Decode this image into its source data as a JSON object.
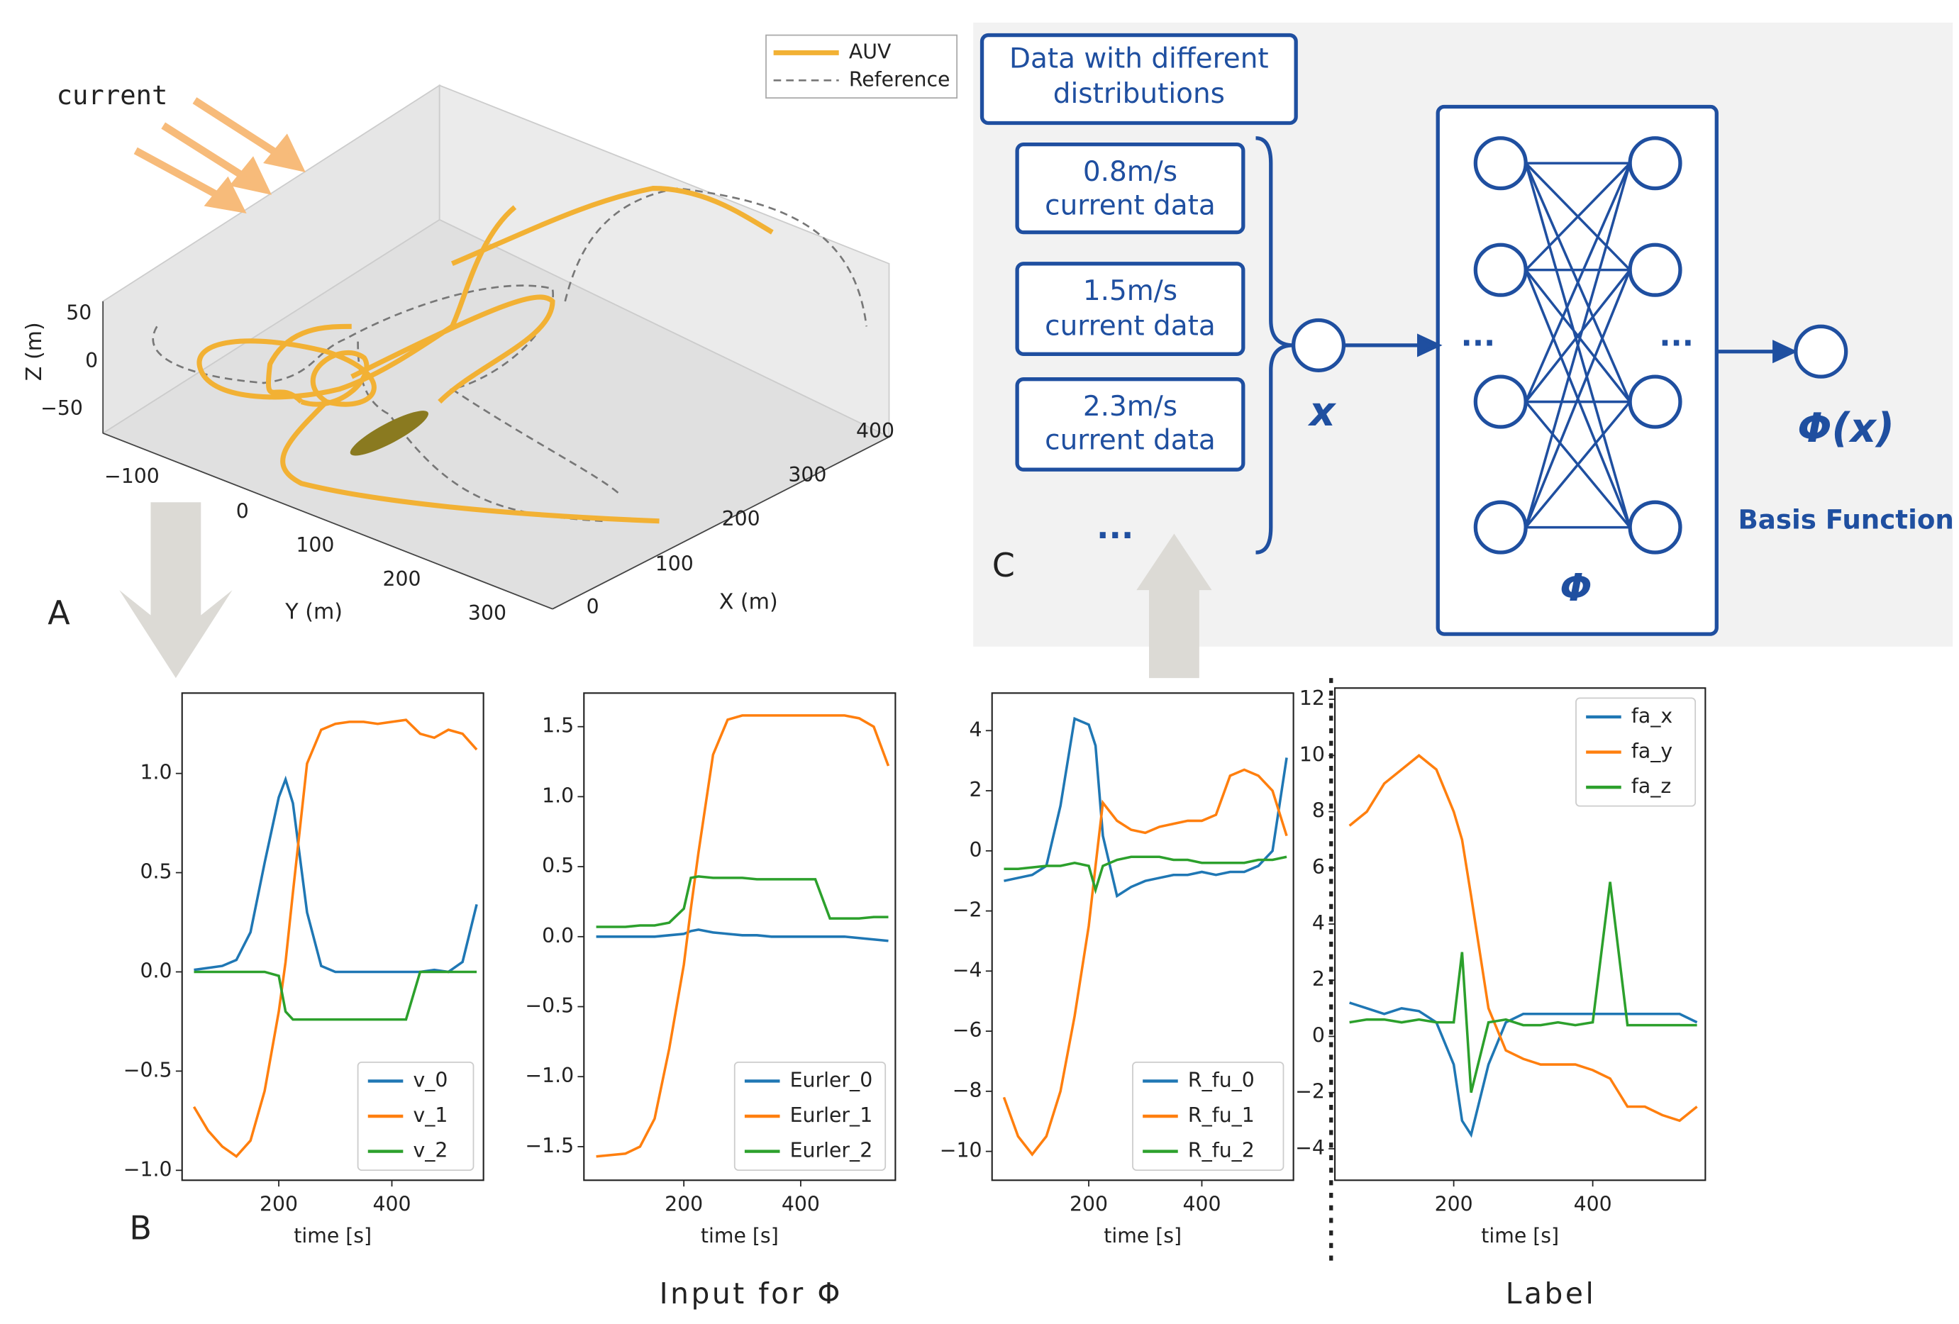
{
  "chart_data": [
    {
      "type": "line3d",
      "xlabel": "X (m)",
      "ylabel": "Y (m)",
      "zlabel": "Z (m)",
      "xticks": [
        0,
        100,
        200,
        300,
        400
      ],
      "yticks": [
        {
          "value": -100,
          "label": "−100"
        },
        0,
        100,
        200,
        300
      ],
      "zticks": [
        {
          "value": -50,
          "label": "−50"
        },
        0,
        50
      ],
      "series": [
        {
          "name": "AUV",
          "color": "#f2b134"
        },
        {
          "name": "Reference",
          "color": "#777777"
        }
      ],
      "legend": "upper right"
    },
    {
      "type": "line",
      "xlabel": "time [s]",
      "x": [
        50,
        75,
        100,
        125,
        150,
        175,
        200,
        212,
        225,
        250,
        275,
        300,
        325,
        350,
        375,
        400,
        425,
        450,
        475,
        500,
        525,
        550
      ],
      "series": [
        {
          "name": "v_0",
          "color": "#1f77b4",
          "values": [
            0.01,
            0.02,
            0.03,
            0.06,
            0.2,
            0.55,
            0.88,
            0.97,
            0.85,
            0.3,
            0.03,
            0.0,
            0.0,
            0.0,
            0.0,
            0.0,
            0.0,
            0.0,
            0.01,
            0.0,
            0.05,
            0.34
          ]
        },
        {
          "name": "v_1",
          "color": "#ff7f0e",
          "values": [
            -0.68,
            -0.8,
            -0.88,
            -0.93,
            -0.85,
            -0.6,
            -0.2,
            0.05,
            0.4,
            1.05,
            1.22,
            1.25,
            1.26,
            1.26,
            1.25,
            1.26,
            1.27,
            1.2,
            1.18,
            1.22,
            1.2,
            1.12
          ]
        },
        {
          "name": "v_2",
          "color": "#2ca02c",
          "values": [
            0,
            0,
            0,
            0,
            0,
            0,
            -0.02,
            -0.2,
            -0.24,
            -0.24,
            -0.24,
            -0.24,
            -0.24,
            -0.24,
            -0.24,
            -0.24,
            -0.24,
            0.0,
            0.0,
            0.0,
            0.0,
            0.0
          ]
        }
      ],
      "xlim": [
        29,
        562
      ],
      "ylim": [
        -1.05,
        1.405
      ],
      "xticks": [
        200,
        400
      ],
      "yticks": [
        {
          "value": -1.0,
          "label": "−1.0"
        },
        {
          "value": -0.5,
          "label": "−0.5"
        },
        {
          "value": 0,
          "label": "0.0"
        },
        0.5,
        {
          "value": 1.0,
          "label": "1.0"
        }
      ],
      "legend": "lower right"
    },
    {
      "type": "line",
      "xlabel": "time [s]",
      "x": [
        50,
        75,
        100,
        125,
        150,
        175,
        200,
        212,
        225,
        250,
        275,
        300,
        325,
        350,
        375,
        400,
        425,
        450,
        475,
        500,
        525,
        550
      ],
      "series": [
        {
          "name": "Eurler_0",
          "color": "#1f77b4",
          "values": [
            0,
            0,
            0,
            0,
            0,
            0.01,
            0.02,
            0.04,
            0.05,
            0.03,
            0.02,
            0.01,
            0.01,
            0,
            0,
            0,
            0,
            0,
            0,
            -0.01,
            -0.02,
            -0.03
          ]
        },
        {
          "name": "Eurler_1",
          "color": "#ff7f0e",
          "values": [
            -1.57,
            -1.56,
            -1.55,
            -1.5,
            -1.3,
            -0.8,
            -0.2,
            0.2,
            0.6,
            1.3,
            1.55,
            1.58,
            1.58,
            1.58,
            1.58,
            1.58,
            1.58,
            1.58,
            1.58,
            1.56,
            1.5,
            1.22
          ]
        },
        {
          "name": "Eurler_2",
          "color": "#2ca02c",
          "values": [
            0.07,
            0.07,
            0.07,
            0.08,
            0.08,
            0.1,
            0.2,
            0.42,
            0.43,
            0.42,
            0.42,
            0.42,
            0.41,
            0.41,
            0.41,
            0.41,
            0.41,
            0.13,
            0.13,
            0.13,
            0.14,
            0.14
          ]
        }
      ],
      "xlim": [
        29,
        562
      ],
      "ylim": [
        -1.74,
        1.74
      ],
      "xticks": [
        200,
        400
      ],
      "yticks": [
        {
          "value": -1.5,
          "label": "−1.5"
        },
        {
          "value": -1.0,
          "label": "−1.0"
        },
        {
          "value": -0.5,
          "label": "−0.5"
        },
        {
          "value": 0,
          "label": "0.0"
        },
        0.5,
        {
          "value": 1.0,
          "label": "1.0"
        },
        1.5
      ],
      "legend": "lower right"
    },
    {
      "type": "line",
      "xlabel": "time [s]",
      "x": [
        50,
        75,
        100,
        125,
        150,
        175,
        200,
        212,
        225,
        250,
        275,
        300,
        325,
        350,
        375,
        400,
        425,
        450,
        475,
        500,
        525,
        550
      ],
      "series": [
        {
          "name": "R_fu_0",
          "color": "#1f77b4",
          "values": [
            -1,
            -0.9,
            -0.8,
            -0.5,
            1.5,
            4.4,
            4.2,
            3.5,
            0.5,
            -1.5,
            -1.2,
            -1,
            -0.9,
            -0.8,
            -0.8,
            -0.7,
            -0.8,
            -0.7,
            -0.7,
            -0.5,
            0,
            3.1
          ]
        },
        {
          "name": "R_fu_1",
          "color": "#ff7f0e",
          "values": [
            -8.2,
            -9.5,
            -10.1,
            -9.5,
            -8,
            -5.5,
            -2.5,
            -0.5,
            1.6,
            1,
            0.7,
            0.6,
            0.8,
            0.9,
            1,
            1,
            1.2,
            2.5,
            2.7,
            2.5,
            2,
            0.5
          ]
        },
        {
          "name": "R_fu_2",
          "color": "#2ca02c",
          "values": [
            -0.6,
            -0.6,
            -0.55,
            -0.5,
            -0.5,
            -0.4,
            -0.5,
            -1.3,
            -0.5,
            -0.3,
            -0.2,
            -0.2,
            -0.2,
            -0.3,
            -0.3,
            -0.4,
            -0.4,
            -0.4,
            -0.4,
            -0.3,
            -0.3,
            -0.2
          ]
        }
      ],
      "xlim": [
        29,
        562
      ],
      "ylim": [
        -10.96,
        5.25
      ],
      "xticks": [
        200,
        400
      ],
      "yticks": [
        {
          "value": -10,
          "label": "−10"
        },
        {
          "value": -8,
          "label": "−8"
        },
        {
          "value": -6,
          "label": "−6"
        },
        {
          "value": -4,
          "label": "−4"
        },
        {
          "value": -2,
          "label": "−2"
        },
        0,
        2,
        4
      ],
      "legend": "lower right"
    },
    {
      "type": "line",
      "xlabel": "time [s]",
      "x": [
        50,
        75,
        100,
        125,
        150,
        175,
        200,
        212,
        225,
        250,
        275,
        300,
        325,
        350,
        375,
        400,
        425,
        450,
        475,
        500,
        525,
        550
      ],
      "series": [
        {
          "name": "fa_x",
          "color": "#1f77b4",
          "values": [
            1.2,
            1,
            0.8,
            1,
            0.9,
            0.5,
            -1,
            -3,
            -3.5,
            -1,
            0.5,
            0.8,
            0.8,
            0.8,
            0.8,
            0.8,
            0.8,
            0.8,
            0.8,
            0.8,
            0.8,
            0.5
          ]
        },
        {
          "name": "fa_y",
          "color": "#ff7f0e",
          "values": [
            7.5,
            8,
            9,
            9.5,
            10,
            9.5,
            8,
            7,
            5,
            1,
            -0.5,
            -0.8,
            -1,
            -1,
            -1,
            -1.2,
            -1.5,
            -2.5,
            -2.5,
            -2.8,
            -3,
            -2.5
          ]
        },
        {
          "name": "fa_z",
          "color": "#2ca02c",
          "values": [
            0.5,
            0.6,
            0.6,
            0.5,
            0.6,
            0.5,
            0.5,
            3,
            -2,
            0.5,
            0.6,
            0.4,
            0.4,
            0.5,
            0.4,
            0.5,
            5.5,
            0.4,
            0.4,
            0.4,
            0.4,
            0.4
          ]
        }
      ],
      "xlim": [
        29,
        562
      ],
      "ylim": [
        -5.12,
        12.4
      ],
      "xticks": [
        200,
        400
      ],
      "yticks": [
        {
          "value": -4,
          "label": "−4"
        },
        {
          "value": -2,
          "label": "−2"
        },
        0,
        2,
        4,
        6,
        8,
        10,
        12
      ],
      "legend": "upper right"
    }
  ],
  "diagram": {
    "title_lines": [
      "Data with different",
      "distributions"
    ],
    "inputs": [
      [
        "0.8m/s",
        "current data"
      ],
      [
        "1.5m/s",
        "current data"
      ],
      [
        "2.3m/s",
        "current data"
      ]
    ],
    "more": "···",
    "input_node": "x",
    "network": "Φ",
    "output_node": "Φ(x)",
    "output_caption": "Basis Function",
    "hidden_dots": "···"
  },
  "labels": {
    "A": "A",
    "B": "B",
    "C": "C",
    "current": "current",
    "input_caption": "Input for Φ",
    "label_caption": "Label"
  }
}
